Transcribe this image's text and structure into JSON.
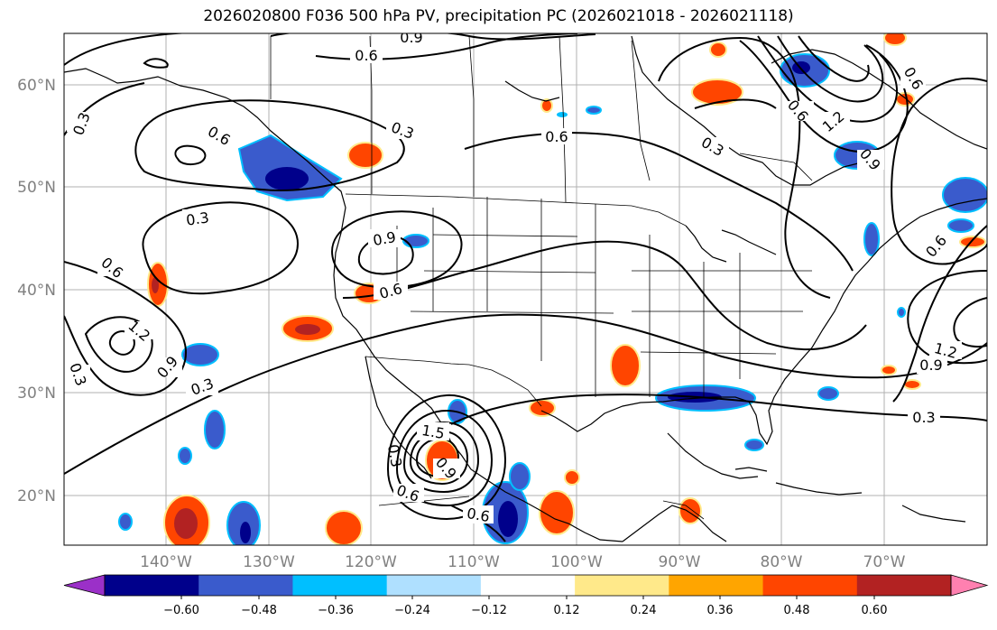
{
  "title": "2026020800 F036 500 hPa PV, precipitation PC (2026021018 - 2026021118)",
  "lat_labels": [
    "60°N",
    "50°N",
    "40°N",
    "30°N",
    "20°N"
  ],
  "lon_labels": [
    "140°W",
    "130°W",
    "120°W",
    "110°W",
    "100°W",
    "90°W",
    "80°W",
    "70°W"
  ],
  "contour_labels": [
    "0.9",
    "0.6",
    "0.3",
    "0.6",
    "0.3",
    "0.6",
    "0.3",
    "0.6",
    "1.2",
    "0.9",
    "0.3",
    "0.9",
    "0.6",
    "0.3",
    "0.3",
    "0.6",
    "1.2",
    "0.3",
    "0.9",
    "0.6",
    "1.5",
    "0.9",
    "0.6",
    "0.6",
    "0.6",
    "1.2",
    "0.9",
    "0.3"
  ],
  "colorbar": {
    "ticks": [
      "−0.60",
      "−0.48",
      "−0.36",
      "−0.24",
      "−0.12",
      "0.12",
      "0.24",
      "0.36",
      "0.48",
      "0.60"
    ],
    "colors": [
      "#9b30c8",
      "#00008b",
      "#3a5bcc",
      "#00bfff",
      "#afe0ff",
      "#ffffff",
      "#ffe98a",
      "#ffa500",
      "#ff4500",
      "#b22222",
      "#ff80b0"
    ]
  },
  "colors": {
    "coast": "#000000",
    "grid": "#a0a0a0",
    "contour": "#000000"
  }
}
